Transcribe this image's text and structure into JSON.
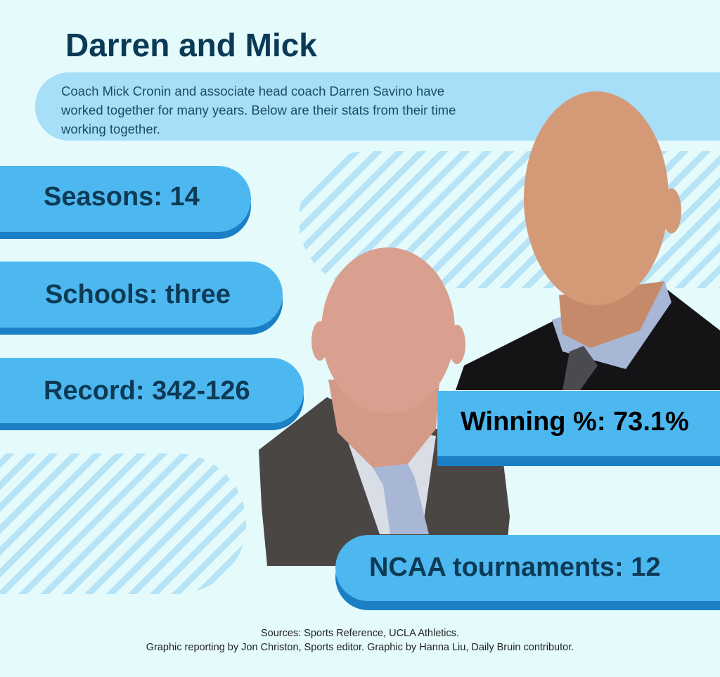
{
  "header": {
    "title": "Darren and Mick",
    "intro": [
      "Coach Mick Cronin and associate head coach Darren Savino have",
      "worked together for many years. Below are their stats from their time",
      "working together."
    ]
  },
  "stats": [
    "Seasons: 14",
    "Schools: three",
    "Record: 342-126",
    "Winning %: 73.1%",
    "NCAA tournaments: 12"
  ],
  "footer": [
    "Sources: Sports Reference, UCLA Athletics.",
    "Graphic reporting by Jon Christon, Sports editor. Graphic by Hanna Liu, Daily Bruin contributor."
  ]
}
